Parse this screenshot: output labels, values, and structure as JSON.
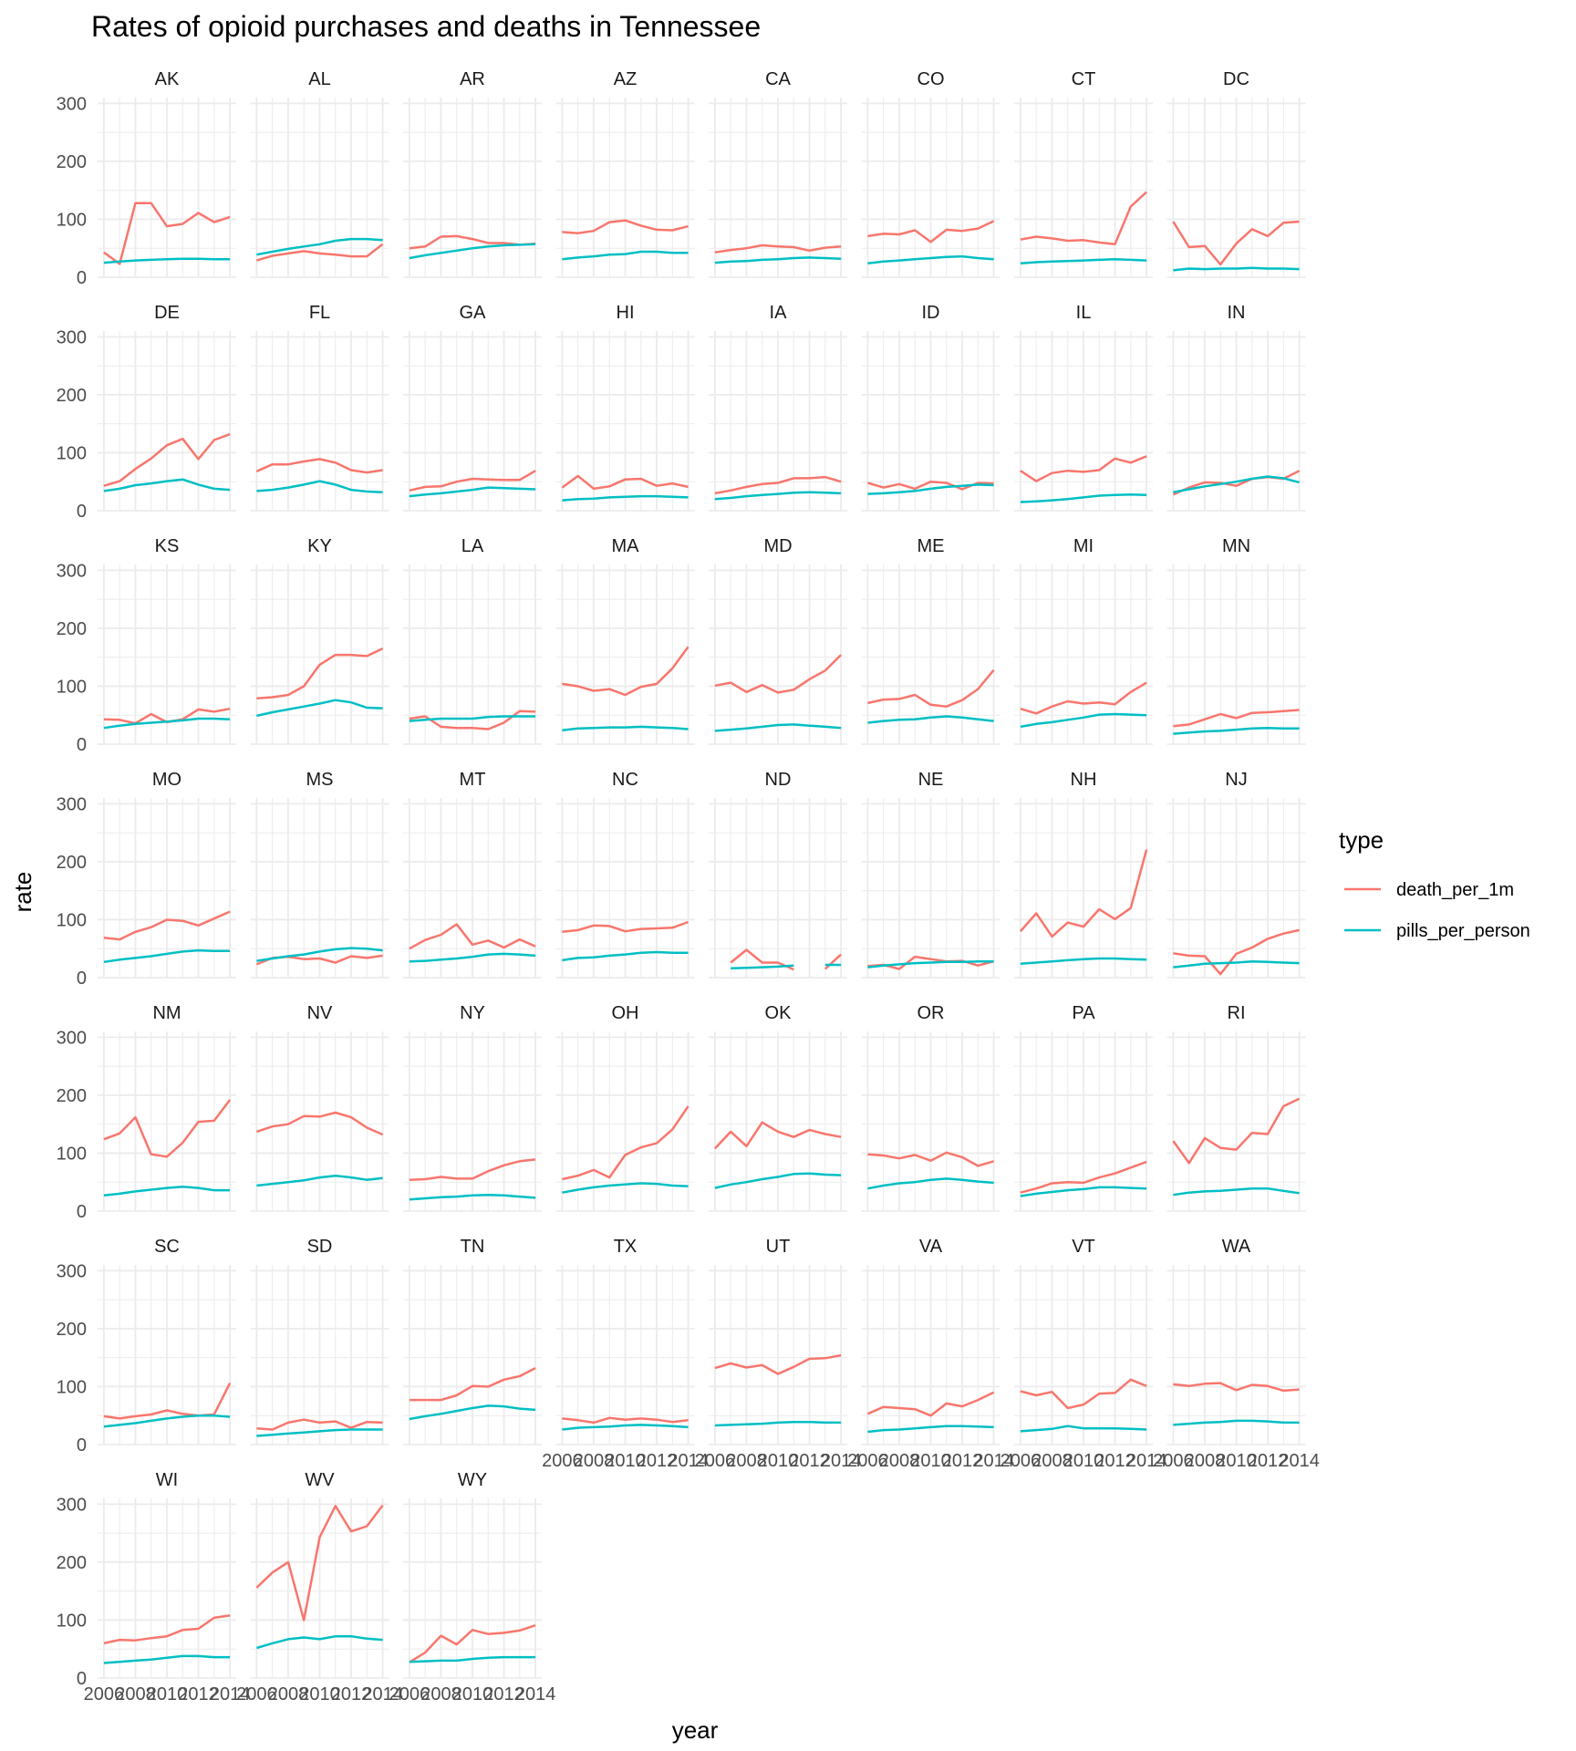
{
  "chart_data": {
    "type": "line",
    "title": "Rates of opioid purchases and deaths in Tennessee",
    "xlabel": "year",
    "ylabel": "rate",
    "x": [
      2006,
      2007,
      2008,
      2009,
      2010,
      2011,
      2012,
      2013,
      2014
    ],
    "x_tick_labels": [
      "2006",
      "2008",
      "2010",
      "2012",
      "2014"
    ],
    "x_ticks": [
      2006,
      2008,
      2010,
      2012,
      2014
    ],
    "ylim": [
      0,
      310
    ],
    "y_ticks": [
      0,
      100,
      200,
      300
    ],
    "y_tick_labels": [
      "0",
      "100",
      "200",
      "300"
    ],
    "grid": true,
    "legend": {
      "title": "type",
      "placement": "right",
      "entries": [
        "death_per_1m",
        "pills_per_person"
      ]
    },
    "colors": {
      "death_per_1m": "#F8766D",
      "pills_per_person": "#00BFC4"
    },
    "facets": [
      {
        "label": "AK",
        "death_per_1m": [
          43,
          23,
          128,
          128,
          88,
          92,
          111,
          95,
          104
        ],
        "pills_per_person": [
          25,
          27,
          29,
          30,
          31,
          32,
          32,
          31,
          31
        ]
      },
      {
        "label": "AL",
        "death_per_1m": [
          29,
          37,
          41,
          45,
          41,
          39,
          36,
          36,
          57
        ],
        "pills_per_person": [
          39,
          44,
          49,
          53,
          57,
          63,
          66,
          66,
          64
        ]
      },
      {
        "label": "AR",
        "death_per_1m": [
          50,
          53,
          70,
          71,
          66,
          59,
          59,
          56,
          58
        ],
        "pills_per_person": [
          33,
          38,
          42,
          46,
          50,
          53,
          55,
          56,
          57
        ]
      },
      {
        "label": "AZ",
        "death_per_1m": [
          78,
          76,
          80,
          95,
          98,
          89,
          82,
          81,
          88
        ],
        "pills_per_person": [
          31,
          34,
          36,
          39,
          40,
          44,
          44,
          42,
          42
        ]
      },
      {
        "label": "CA",
        "death_per_1m": [
          43,
          47,
          50,
          55,
          53,
          52,
          46,
          51,
          53
        ],
        "pills_per_person": [
          25,
          27,
          28,
          30,
          31,
          33,
          34,
          33,
          32
        ]
      },
      {
        "label": "CO",
        "death_per_1m": [
          71,
          75,
          74,
          81,
          61,
          82,
          80,
          84,
          97
        ],
        "pills_per_person": [
          24,
          27,
          29,
          31,
          33,
          35,
          36,
          33,
          31
        ]
      },
      {
        "label": "CT",
        "death_per_1m": [
          65,
          70,
          67,
          63,
          64,
          60,
          57,
          122,
          147
        ],
        "pills_per_person": [
          24,
          26,
          27,
          28,
          29,
          30,
          31,
          30,
          29
        ]
      },
      {
        "label": "DC",
        "death_per_1m": [
          96,
          52,
          54,
          22,
          58,
          83,
          71,
          94,
          96
        ],
        "pills_per_person": [
          12,
          15,
          14,
          15,
          15,
          16,
          15,
          15,
          14
        ]
      },
      {
        "label": "DE",
        "death_per_1m": [
          43,
          51,
          72,
          90,
          113,
          124,
          89,
          122,
          132
        ],
        "pills_per_person": [
          34,
          38,
          44,
          47,
          51,
          54,
          45,
          38,
          36
        ]
      },
      {
        "label": "FL",
        "death_per_1m": [
          68,
          80,
          80,
          85,
          89,
          83,
          70,
          66,
          70
        ],
        "pills_per_person": [
          34,
          36,
          40,
          45,
          51,
          45,
          36,
          33,
          32
        ]
      },
      {
        "label": "GA",
        "death_per_1m": [
          35,
          41,
          42,
          50,
          55,
          54,
          53,
          53,
          69
        ],
        "pills_per_person": [
          25,
          28,
          30,
          33,
          36,
          40,
          39,
          38,
          37
        ]
      },
      {
        "label": "HI",
        "death_per_1m": [
          40,
          60,
          38,
          42,
          54,
          55,
          43,
          47,
          41
        ],
        "pills_per_person": [
          18,
          20,
          21,
          23,
          24,
          25,
          25,
          24,
          23
        ]
      },
      {
        "label": "IA",
        "death_per_1m": [
          30,
          35,
          41,
          46,
          48,
          56,
          56,
          58,
          50
        ],
        "pills_per_person": [
          20,
          22,
          25,
          27,
          29,
          31,
          32,
          31,
          30
        ]
      },
      {
        "label": "ID",
        "death_per_1m": [
          48,
          40,
          46,
          38,
          50,
          48,
          37,
          48,
          47
        ],
        "pills_per_person": [
          29,
          30,
          32,
          34,
          38,
          41,
          43,
          45,
          44
        ]
      },
      {
        "label": "IL",
        "death_per_1m": [
          69,
          51,
          65,
          69,
          67,
          70,
          90,
          83,
          94
        ],
        "pills_per_person": [
          15,
          16,
          18,
          20,
          23,
          26,
          27,
          28,
          27
        ]
      },
      {
        "label": "IN",
        "death_per_1m": [
          28,
          40,
          49,
          48,
          43,
          55,
          58,
          55,
          69
        ],
        "pills_per_person": [
          32,
          37,
          42,
          46,
          50,
          55,
          59,
          56,
          49
        ]
      },
      {
        "label": "KS",
        "death_per_1m": [
          43,
          42,
          36,
          52,
          38,
          43,
          60,
          56,
          61
        ],
        "pills_per_person": [
          28,
          32,
          35,
          37,
          39,
          41,
          44,
          44,
          43
        ]
      },
      {
        "label": "KY",
        "death_per_1m": [
          79,
          81,
          85,
          100,
          137,
          154,
          154,
          152,
          165
        ],
        "pills_per_person": [
          49,
          55,
          60,
          65,
          70,
          76,
          72,
          63,
          62
        ]
      },
      {
        "label": "LA",
        "death_per_1m": [
          44,
          48,
          30,
          28,
          28,
          26,
          37,
          57,
          56
        ],
        "pills_per_person": [
          40,
          42,
          44,
          44,
          44,
          47,
          48,
          48,
          48
        ]
      },
      {
        "label": "MA",
        "death_per_1m": [
          104,
          100,
          92,
          95,
          85,
          99,
          104,
          131,
          168
        ],
        "pills_per_person": [
          24,
          27,
          28,
          29,
          29,
          30,
          29,
          28,
          26
        ]
      },
      {
        "label": "MD",
        "death_per_1m": [
          101,
          106,
          90,
          102,
          89,
          94,
          112,
          127,
          154
        ],
        "pills_per_person": [
          23,
          25,
          27,
          30,
          33,
          34,
          32,
          30,
          28
        ]
      },
      {
        "label": "ME",
        "death_per_1m": [
          71,
          77,
          78,
          85,
          68,
          65,
          76,
          95,
          128
        ],
        "pills_per_person": [
          37,
          40,
          42,
          43,
          46,
          48,
          46,
          43,
          40
        ]
      },
      {
        "label": "MI",
        "death_per_1m": [
          61,
          53,
          65,
          74,
          70,
          72,
          69,
          90,
          106
        ],
        "pills_per_person": [
          30,
          35,
          38,
          42,
          46,
          51,
          52,
          51,
          50
        ]
      },
      {
        "label": "MN",
        "death_per_1m": [
          31,
          34,
          43,
          52,
          45,
          54,
          55,
          57,
          59
        ],
        "pills_per_person": [
          18,
          20,
          22,
          23,
          25,
          27,
          28,
          27,
          27
        ]
      },
      {
        "label": "MO",
        "death_per_1m": [
          69,
          66,
          79,
          87,
          100,
          98,
          90,
          102,
          114
        ],
        "pills_per_person": [
          27,
          31,
          34,
          37,
          41,
          45,
          47,
          46,
          46
        ]
      },
      {
        "label": "MS",
        "death_per_1m": [
          23,
          34,
          36,
          32,
          33,
          26,
          37,
          34,
          38
        ],
        "pills_per_person": [
          29,
          33,
          37,
          40,
          45,
          49,
          51,
          50,
          47
        ]
      },
      {
        "label": "MT",
        "death_per_1m": [
          50,
          65,
          74,
          92,
          57,
          64,
          52,
          66,
          54
        ],
        "pills_per_person": [
          28,
          29,
          31,
          33,
          36,
          40,
          41,
          40,
          38
        ]
      },
      {
        "label": "NC",
        "death_per_1m": [
          79,
          82,
          90,
          89,
          80,
          84,
          85,
          86,
          96
        ],
        "pills_per_person": [
          30,
          34,
          35,
          38,
          40,
          43,
          44,
          43,
          43
        ]
      },
      {
        "label": "ND",
        "death_per_1m": [
          null,
          26,
          48,
          26,
          26,
          14,
          null,
          15,
          40
        ],
        "pills_per_person": [
          null,
          16,
          17,
          18,
          19,
          21,
          null,
          22,
          22
        ]
      },
      {
        "label": "NE",
        "death_per_1m": [
          20,
          22,
          15,
          36,
          32,
          28,
          29,
          21,
          28
        ],
        "pills_per_person": [
          18,
          21,
          23,
          25,
          26,
          27,
          27,
          28,
          28
        ]
      },
      {
        "label": "NH",
        "death_per_1m": [
          80,
          111,
          71,
          95,
          88,
          118,
          101,
          120,
          221
        ],
        "pills_per_person": [
          24,
          26,
          28,
          30,
          32,
          33,
          33,
          32,
          31
        ]
      },
      {
        "label": "NJ",
        "death_per_1m": [
          42,
          38,
          37,
          6,
          41,
          52,
          67,
          76,
          82
        ],
        "pills_per_person": [
          18,
          21,
          24,
          25,
          26,
          28,
          27,
          26,
          25
        ]
      },
      {
        "label": "NM",
        "death_per_1m": [
          124,
          134,
          162,
          98,
          94,
          118,
          154,
          156,
          192
        ],
        "pills_per_person": [
          27,
          30,
          34,
          37,
          40,
          42,
          40,
          36,
          36
        ]
      },
      {
        "label": "NV",
        "death_per_1m": [
          137,
          146,
          150,
          164,
          163,
          170,
          162,
          144,
          132
        ],
        "pills_per_person": [
          44,
          47,
          50,
          53,
          58,
          61,
          58,
          54,
          57
        ]
      },
      {
        "label": "NY",
        "death_per_1m": [
          54,
          55,
          59,
          56,
          56,
          69,
          79,
          86,
          89
        ],
        "pills_per_person": [
          20,
          22,
          24,
          25,
          27,
          28,
          27,
          25,
          23
        ]
      },
      {
        "label": "OH",
        "death_per_1m": [
          55,
          61,
          71,
          58,
          97,
          110,
          117,
          141,
          181
        ],
        "pills_per_person": [
          32,
          37,
          41,
          44,
          46,
          48,
          47,
          44,
          43
        ]
      },
      {
        "label": "OK",
        "death_per_1m": [
          108,
          137,
          112,
          153,
          137,
          128,
          140,
          133,
          128
        ],
        "pills_per_person": [
          40,
          46,
          50,
          55,
          59,
          64,
          65,
          63,
          62
        ]
      },
      {
        "label": "OR",
        "death_per_1m": [
          98,
          96,
          91,
          97,
          87,
          101,
          93,
          78,
          86
        ],
        "pills_per_person": [
          39,
          44,
          48,
          50,
          54,
          56,
          54,
          51,
          49
        ]
      },
      {
        "label": "PA",
        "death_per_1m": [
          32,
          39,
          48,
          50,
          49,
          58,
          65,
          75,
          85
        ],
        "pills_per_person": [
          26,
          30,
          33,
          36,
          38,
          41,
          41,
          40,
          39
        ]
      },
      {
        "label": "RI",
        "death_per_1m": [
          121,
          83,
          126,
          109,
          106,
          135,
          133,
          181,
          194
        ],
        "pills_per_person": [
          28,
          32,
          34,
          35,
          37,
          39,
          39,
          35,
          31
        ]
      },
      {
        "label": "SC",
        "death_per_1m": [
          49,
          45,
          49,
          52,
          59,
          53,
          50,
          52,
          106
        ],
        "pills_per_person": [
          31,
          34,
          37,
          41,
          45,
          48,
          50,
          50,
          48
        ]
      },
      {
        "label": "SD",
        "death_per_1m": [
          28,
          26,
          38,
          43,
          38,
          40,
          29,
          39,
          38
        ],
        "pills_per_person": [
          15,
          17,
          19,
          21,
          23,
          25,
          26,
          26,
          26
        ]
      },
      {
        "label": "TN",
        "death_per_1m": [
          77,
          77,
          77,
          85,
          101,
          100,
          112,
          118,
          132
        ],
        "pills_per_person": [
          44,
          49,
          53,
          58,
          63,
          67,
          66,
          62,
          60
        ]
      },
      {
        "label": "TX",
        "death_per_1m": [
          45,
          42,
          38,
          46,
          43,
          45,
          43,
          39,
          42
        ],
        "pills_per_person": [
          26,
          29,
          30,
          31,
          33,
          34,
          33,
          32,
          30
        ]
      },
      {
        "label": "UT",
        "death_per_1m": [
          132,
          140,
          133,
          137,
          122,
          134,
          148,
          149,
          154
        ],
        "pills_per_person": [
          33,
          34,
          35,
          36,
          38,
          39,
          39,
          38,
          38
        ]
      },
      {
        "label": "VA",
        "death_per_1m": [
          53,
          65,
          63,
          61,
          50,
          71,
          66,
          77,
          90
        ],
        "pills_per_person": [
          22,
          25,
          26,
          28,
          30,
          32,
          32,
          31,
          30
        ]
      },
      {
        "label": "VT",
        "death_per_1m": [
          92,
          85,
          91,
          63,
          69,
          88,
          89,
          112,
          101
        ],
        "pills_per_person": [
          23,
          25,
          27,
          32,
          28,
          28,
          28,
          27,
          26
        ]
      },
      {
        "label": "WA",
        "death_per_1m": [
          104,
          101,
          105,
          106,
          94,
          103,
          101,
          93,
          95
        ],
        "pills_per_person": [
          34,
          36,
          38,
          39,
          41,
          41,
          40,
          38,
          38
        ]
      },
      {
        "label": "WI",
        "death_per_1m": [
          60,
          66,
          65,
          69,
          72,
          83,
          85,
          104,
          108
        ],
        "pills_per_person": [
          26,
          28,
          30,
          32,
          35,
          38,
          38,
          36,
          36
        ]
      },
      {
        "label": "WV",
        "death_per_1m": [
          156,
          182,
          200,
          100,
          243,
          297,
          253,
          262,
          298
        ],
        "pills_per_person": [
          52,
          60,
          67,
          70,
          67,
          72,
          72,
          68,
          66
        ]
      },
      {
        "label": "WY",
        "death_per_1m": [
          27,
          44,
          73,
          58,
          83,
          76,
          78,
          82,
          91
        ],
        "pills_per_person": [
          28,
          29,
          30,
          30,
          33,
          35,
          36,
          36,
          36
        ]
      }
    ]
  }
}
